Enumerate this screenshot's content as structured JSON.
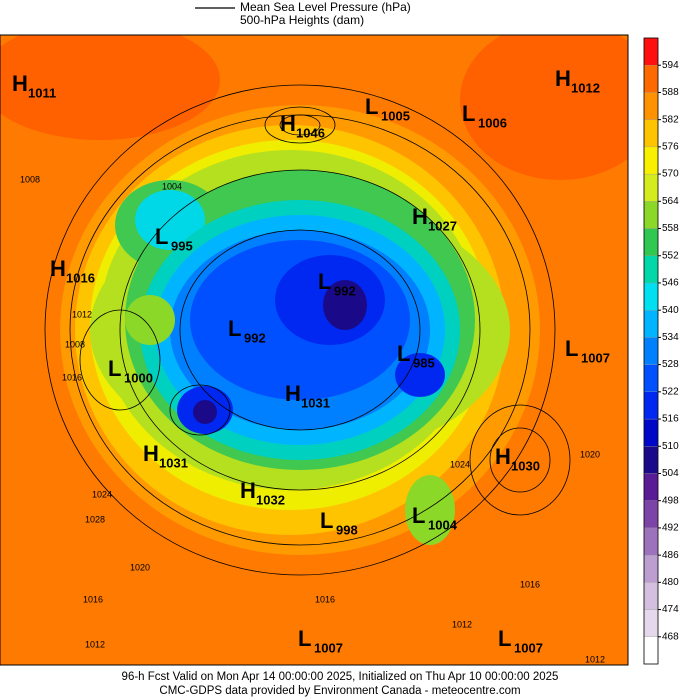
{
  "legend": {
    "line_label": "Mean Sea Level Pressure (hPa)",
    "fill_label": "500-hPa Heights (dam)"
  },
  "centers": [
    {
      "type": "H",
      "value": 1011
    },
    {
      "type": "L",
      "value": 1005
    },
    {
      "type": "L",
      "value": 1006
    },
    {
      "type": "H",
      "value": 1012
    },
    {
      "type": "H",
      "value": 1046
    },
    {
      "type": "L",
      "value": 995
    },
    {
      "type": "H",
      "value": 1027
    },
    {
      "type": "H",
      "value": 1016
    },
    {
      "type": "L",
      "value": 992
    },
    {
      "type": "L",
      "value": 992
    },
    {
      "type": "L",
      "value": 985
    },
    {
      "type": "L",
      "value": 1007
    },
    {
      "type": "L",
      "value": 1000
    },
    {
      "type": "H",
      "value": 1031
    },
    {
      "type": "H",
      "value": 1031
    },
    {
      "type": "H",
      "value": 1030
    },
    {
      "type": "H",
      "value": 1032
    },
    {
      "type": "L",
      "value": 998
    },
    {
      "type": "L",
      "value": 1004
    },
    {
      "type": "L",
      "value": 1007
    },
    {
      "type": "L",
      "value": 1007
    }
  ],
  "contour_labels": [
    1008,
    1004,
    1012,
    1008,
    1016,
    1024,
    1028,
    1020,
    1016,
    1012,
    1016,
    1012,
    1024,
    1020,
    1016,
    1012
  ],
  "colorbar": {
    "ticks": [
      468,
      474,
      480,
      486,
      492,
      498,
      504,
      510,
      516,
      522,
      528,
      534,
      540,
      546,
      552,
      558,
      564,
      570,
      576,
      582,
      588,
      594
    ],
    "colors": [
      "#ffffff",
      "#e6d8ec",
      "#d4bfdf",
      "#bc9fd0",
      "#9d72bd",
      "#7d44a8",
      "#5a1b96",
      "#1a0a8a",
      "#0008c8",
      "#0028f0",
      "#0050ff",
      "#0080ff",
      "#00b4ff",
      "#00e0f0",
      "#00d8a8",
      "#30c850",
      "#8cd828",
      "#d4ec1e",
      "#f8f000",
      "#ffc400",
      "#ff9200",
      "#ff6a00",
      "#ff1010"
    ]
  },
  "footer": {
    "line1": "96-h Fcst Valid on Mon Apr 14 00:00:00 2025, Initialized on Thu Apr 10 00:00:00 2025",
    "line2": "CMC-GDPS data provided by Environment Canada - meteocentre.com"
  }
}
